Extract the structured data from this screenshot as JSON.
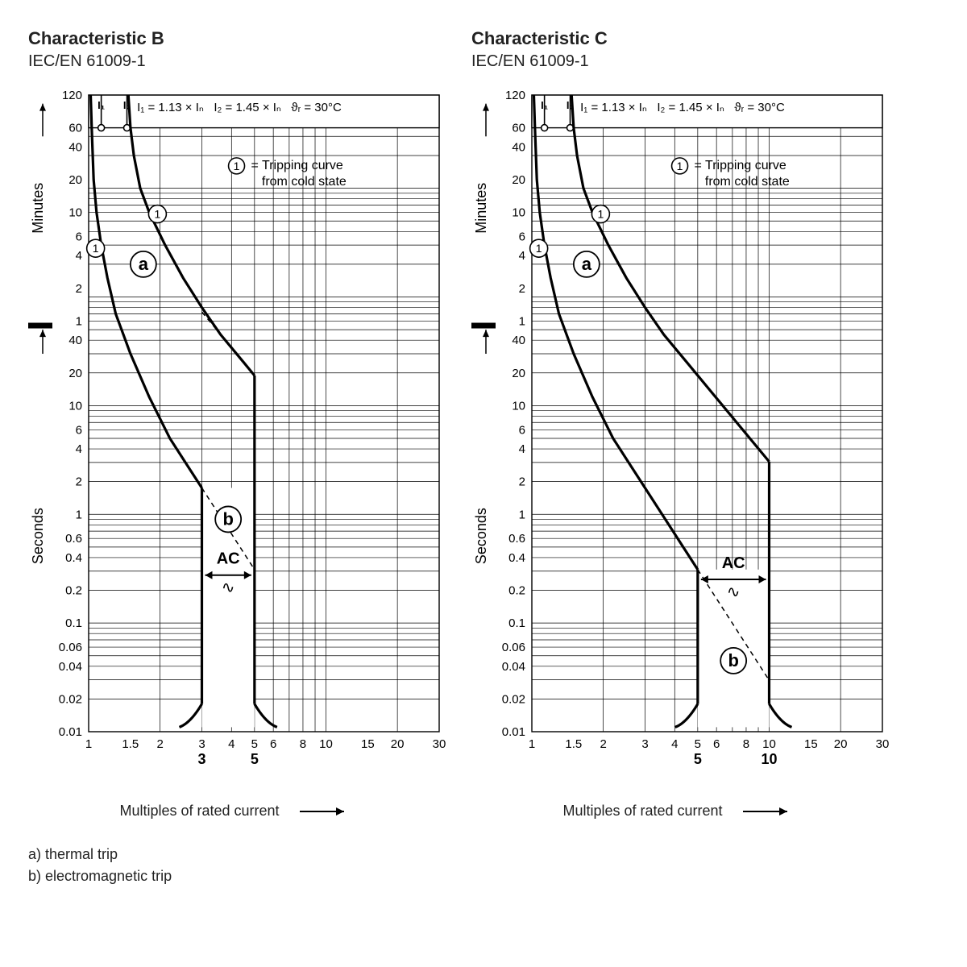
{
  "charts": [
    {
      "title": "Characteristic B",
      "subtitle": "IEC/EN 61009-1",
      "trip_low": 3,
      "trip_high": 5,
      "trip_low_label": "3",
      "trip_high_label": "5"
    },
    {
      "title": "Characteristic C",
      "subtitle": "IEC/EN 61009-1",
      "trip_low": 5,
      "trip_high": 10,
      "trip_low_label": "5",
      "trip_high_label": "10"
    }
  ],
  "common": {
    "header_i1": "I₁ = 1.13 × Iₙ",
    "header_i2": "I₂ = 1.45 × Iₙ",
    "header_temp": "ϑᵣ = 30°C",
    "legend_line1": "= Tripping curve",
    "legend_line2": "from cold state",
    "ylabel_min": "Minutes",
    "ylabel_sec": "Seconds",
    "xlabel": "Multiples of rated current",
    "footer_a": "a)  thermal trip",
    "footer_b": "b)  electromagnetic trip",
    "zone_a": "a",
    "zone_b": "b",
    "zone_ac": "AC",
    "x_ticks": [
      {
        "v": 1,
        "l": "1"
      },
      {
        "v": 1.5,
        "l": "1.5"
      },
      {
        "v": 2,
        "l": "2"
      },
      {
        "v": 3,
        "l": "3"
      },
      {
        "v": 4,
        "l": "4"
      },
      {
        "v": 5,
        "l": "5"
      },
      {
        "v": 6,
        "l": "6"
      },
      {
        "v": 8,
        "l": "8"
      },
      {
        "v": 10,
        "l": "10"
      },
      {
        "v": 15,
        "l": "15"
      },
      {
        "v": 20,
        "l": "20"
      },
      {
        "v": 30,
        "l": "30"
      }
    ],
    "y_ticks_sec": [
      {
        "v": 0.01,
        "l": "0.01"
      },
      {
        "v": 0.02,
        "l": "0.02"
      },
      {
        "v": 0.04,
        "l": "0.04"
      },
      {
        "v": 0.06,
        "l": "0.06"
      },
      {
        "v": 0.1,
        "l": "0.1"
      },
      {
        "v": 0.2,
        "l": "0.2"
      },
      {
        "v": 0.4,
        "l": "0.4"
      },
      {
        "v": 0.6,
        "l": "0.6"
      },
      {
        "v": 1,
        "l": "1"
      },
      {
        "v": 2,
        "l": "2"
      },
      {
        "v": 4,
        "l": "4"
      },
      {
        "v": 6,
        "l": "6"
      },
      {
        "v": 10,
        "l": "10"
      },
      {
        "v": 20,
        "l": "20"
      },
      {
        "v": 40,
        "l": "40"
      }
    ],
    "y_ticks_min": [
      {
        "v": 60,
        "l": "1"
      },
      {
        "v": 120,
        "l": "2"
      },
      {
        "v": 240,
        "l": "4"
      },
      {
        "v": 360,
        "l": "6"
      },
      {
        "v": 600,
        "l": "10"
      },
      {
        "v": 1200,
        "l": "20"
      },
      {
        "v": 2400,
        "l": "40"
      },
      {
        "v": 3600,
        "l": "60"
      },
      {
        "v": 7200,
        "l": "120"
      }
    ],
    "thermal_lower": [
      [
        1.02,
        7200
      ],
      [
        1.03,
        3600
      ],
      [
        1.05,
        1200
      ],
      [
        1.08,
        600
      ],
      [
        1.13,
        300
      ],
      [
        1.2,
        150
      ],
      [
        1.3,
        70
      ],
      [
        1.5,
        30
      ],
      [
        1.8,
        12
      ],
      [
        2.2,
        5
      ],
      [
        2.7,
        2.5
      ]
    ],
    "thermal_upper": [
      [
        1.47,
        7200
      ],
      [
        1.5,
        3600
      ],
      [
        1.55,
        2000
      ],
      [
        1.65,
        1000
      ],
      [
        1.8,
        600
      ],
      [
        2.1,
        300
      ],
      [
        2.5,
        150
      ],
      [
        3.0,
        80
      ],
      [
        3.6,
        45
      ],
      [
        4.5,
        25
      ]
    ],
    "styling": {
      "curve_width": 3.2,
      "grid_color": "#000000",
      "grid_width": 0.7,
      "bg": "#ffffff",
      "tick_fontsize": 15,
      "axis_label_fontsize": 18,
      "header_fontsize": 15,
      "zone_fontsize": 22
    }
  }
}
